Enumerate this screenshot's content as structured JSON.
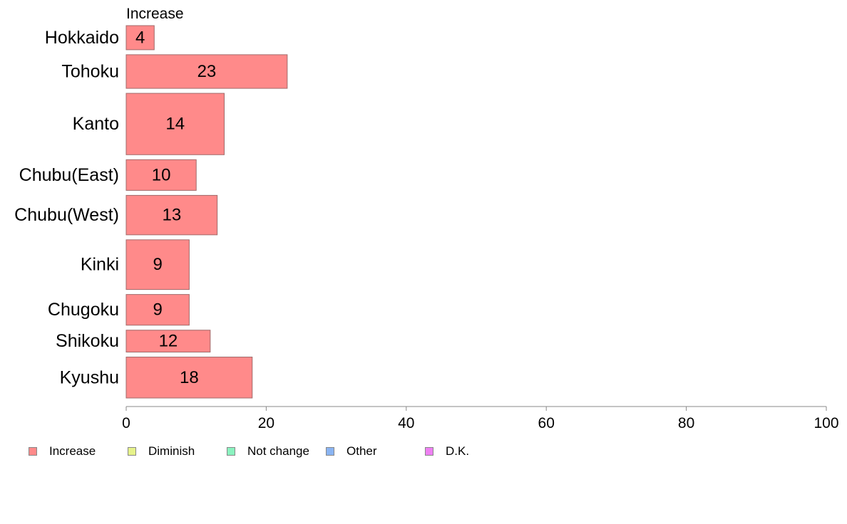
{
  "chart_data": {
    "type": "bar",
    "orientation": "horizontal",
    "series_label": "Increase",
    "categories": [
      "Hokkaido",
      "Tohoku",
      "Kanto",
      "Chubu(East)",
      "Chubu(West)",
      "Kinki",
      "Chugoku",
      "Shikoku",
      "Kyushu"
    ],
    "series": [
      {
        "name": "Increase",
        "values": [
          4,
          23,
          14,
          10,
          13,
          9,
          9,
          12,
          18
        ]
      }
    ],
    "bar_widths_relative": [
      33,
      46,
      84,
      42,
      54,
      68,
      42,
      30,
      56
    ],
    "xlim": [
      0,
      100
    ],
    "xticks": [
      "0",
      "20",
      "40",
      "60",
      "80",
      "100"
    ],
    "grid": false,
    "legend_position": "bottom",
    "legend": [
      {
        "label": "Increase",
        "color": "#ff8a8a"
      },
      {
        "label": "Diminish",
        "color": "#e6f28a"
      },
      {
        "label": "Not change",
        "color": "#8af2bf"
      },
      {
        "label": "Other",
        "color": "#8ab4f2"
      },
      {
        "label": "D.K.",
        "color": "#ee80f2"
      }
    ]
  }
}
